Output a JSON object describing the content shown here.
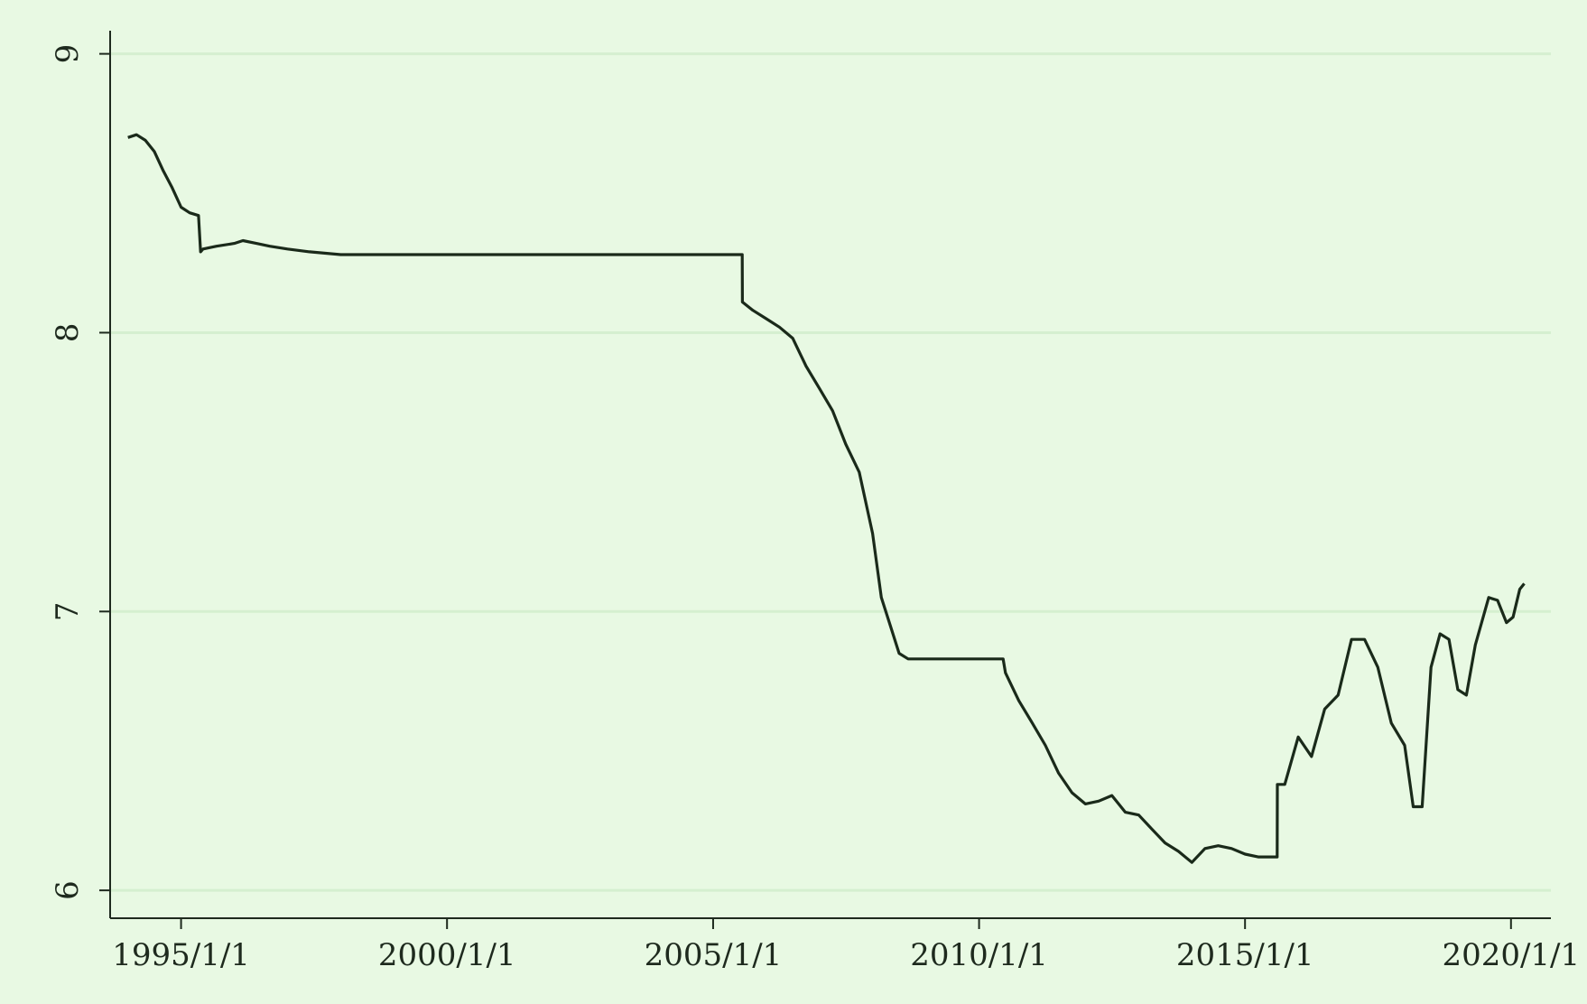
{
  "chart_data": {
    "type": "line",
    "title": "",
    "xlabel": "",
    "ylabel": "",
    "grid": true,
    "colors": {
      "background": "#e8f9e3",
      "line": "#1a2a1a",
      "grid": "#d5efd0",
      "axis": "#1e2a1e"
    },
    "xlim": [
      "1993-09-01",
      "2020-10-01"
    ],
    "ylim": [
      5.9,
      9.07
    ],
    "x_ticks": [
      {
        "value": "1995-01-01",
        "label": "1995/1/1"
      },
      {
        "value": "2000-01-01",
        "label": "2000/1/1"
      },
      {
        "value": "2005-01-01",
        "label": "2005/1/1"
      },
      {
        "value": "2010-01-01",
        "label": "2010/1/1"
      },
      {
        "value": "2015-01-01",
        "label": "2015/1/1"
      },
      {
        "value": "2020-01-01",
        "label": "2020/1/1"
      }
    ],
    "y_ticks": [
      {
        "value": 6,
        "label": "6"
      },
      {
        "value": 7,
        "label": "7"
      },
      {
        "value": 8,
        "label": "8"
      },
      {
        "value": 9,
        "label": "9"
      }
    ],
    "series": [
      {
        "name": "",
        "x": [
          "1994-01-01",
          "1994-03-01",
          "1994-05-01",
          "1994-07-01",
          "1994-09-01",
          "1994-11-01",
          "1995-01-01",
          "1995-03-01",
          "1995-05-01",
          "1995-05-15",
          "1995-06-01",
          "1995-09-01",
          "1996-01-01",
          "1996-03-01",
          "1996-06-01",
          "1996-09-01",
          "1997-01-01",
          "1997-06-01",
          "1998-01-01",
          "1999-01-01",
          "2000-01-01",
          "2001-01-01",
          "2002-01-01",
          "2003-01-01",
          "2004-01-01",
          "2005-07-20",
          "2005-07-21",
          "2005-10-01",
          "2006-01-01",
          "2006-04-01",
          "2006-07-01",
          "2006-10-01",
          "2007-01-01",
          "2007-04-01",
          "2007-07-01",
          "2007-10-01",
          "2008-01-01",
          "2008-03-01",
          "2008-05-01",
          "2008-07-01",
          "2008-09-01",
          "2009-01-01",
          "2009-06-01",
          "2010-01-01",
          "2010-06-15",
          "2010-07-01",
          "2010-10-01",
          "2011-01-01",
          "2011-04-01",
          "2011-07-01",
          "2011-10-01",
          "2012-01-01",
          "2012-04-01",
          "2012-07-01",
          "2012-10-01",
          "2013-01-01",
          "2013-04-01",
          "2013-07-01",
          "2013-10-01",
          "2014-01-01",
          "2014-04-01",
          "2014-07-01",
          "2014-10-01",
          "2015-01-01",
          "2015-04-01",
          "2015-08-10",
          "2015-08-11",
          "2015-10-01",
          "2016-01-01",
          "2016-04-01",
          "2016-07-01",
          "2016-10-01",
          "2017-01-01",
          "2017-04-01",
          "2017-07-01",
          "2017-10-01",
          "2018-01-01",
          "2018-03-01",
          "2018-05-01",
          "2018-07-01",
          "2018-09-01",
          "2018-11-01",
          "2019-01-01",
          "2019-03-01",
          "2019-05-01",
          "2019-08-01",
          "2019-10-01",
          "2019-12-01",
          "2020-01-15",
          "2020-03-01",
          "2020-04-01"
        ],
        "y": [
          8.7,
          8.71,
          8.69,
          8.65,
          8.58,
          8.52,
          8.45,
          8.43,
          8.42,
          8.29,
          8.3,
          8.31,
          8.32,
          8.33,
          8.32,
          8.31,
          8.3,
          8.29,
          8.28,
          8.28,
          8.28,
          8.28,
          8.28,
          8.28,
          8.28,
          8.28,
          8.11,
          8.08,
          8.05,
          8.02,
          7.98,
          7.88,
          7.8,
          7.72,
          7.6,
          7.5,
          7.28,
          7.05,
          6.95,
          6.85,
          6.83,
          6.83,
          6.83,
          6.83,
          6.83,
          6.78,
          6.68,
          6.6,
          6.52,
          6.42,
          6.35,
          6.31,
          6.32,
          6.34,
          6.28,
          6.27,
          6.22,
          6.17,
          6.14,
          6.1,
          6.15,
          6.16,
          6.15,
          6.13,
          6.12,
          6.12,
          6.38,
          6.38,
          6.55,
          6.48,
          6.65,
          6.7,
          6.9,
          6.9,
          6.8,
          6.6,
          6.52,
          6.3,
          6.3,
          6.8,
          6.92,
          6.9,
          6.72,
          6.7,
          6.88,
          7.05,
          7.04,
          6.96,
          6.98,
          7.08,
          7.1
        ]
      }
    ]
  }
}
